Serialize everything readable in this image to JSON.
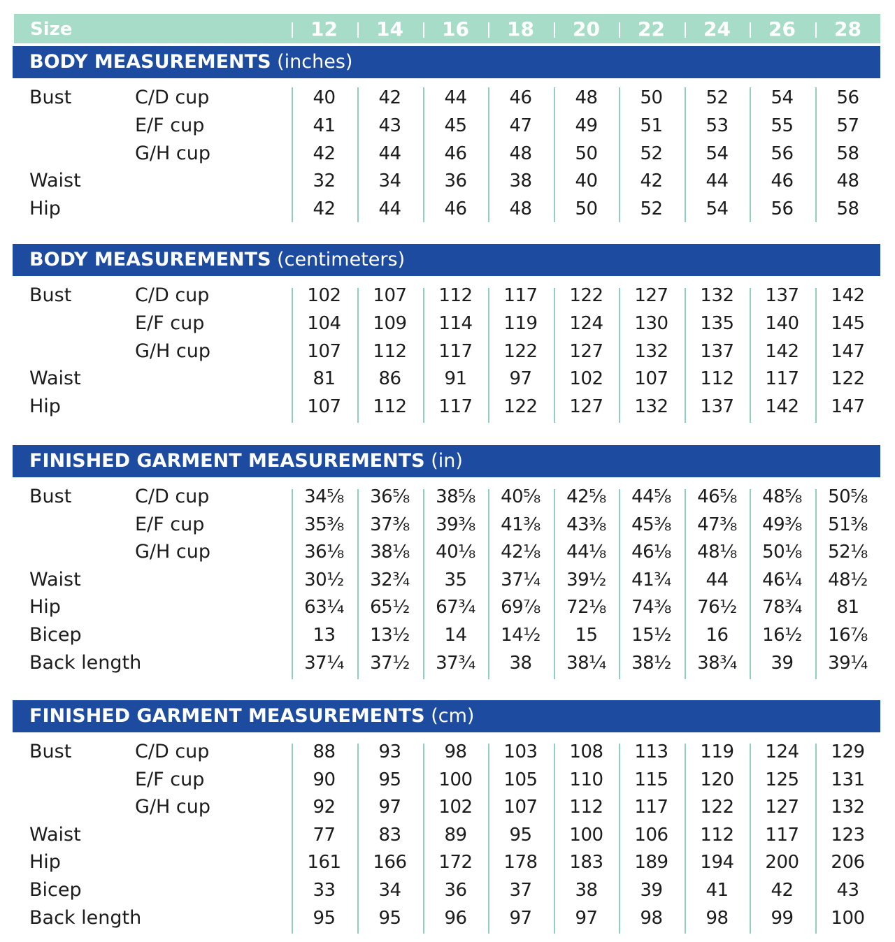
{
  "header": {
    "size_label": "Size",
    "sizes": [
      "12",
      "14",
      "16",
      "18",
      "20",
      "22",
      "24",
      "26",
      "28"
    ]
  },
  "sections": [
    {
      "title_bold": "BODY MEASUREMENTS",
      "title_unit": "(inches)",
      "rows": [
        {
          "label": "Bust",
          "sub": "C/D cup",
          "values": [
            "40",
            "42",
            "44",
            "46",
            "48",
            "50",
            "52",
            "54",
            "56"
          ]
        },
        {
          "label": "",
          "sub": "E/F cup",
          "values": [
            "41",
            "43",
            "45",
            "47",
            "49",
            "51",
            "53",
            "55",
            "57"
          ]
        },
        {
          "label": "",
          "sub": "G/H cup",
          "values": [
            "42",
            "44",
            "46",
            "48",
            "50",
            "52",
            "54",
            "56",
            "58"
          ]
        },
        {
          "label": "Waist",
          "sub": "",
          "values": [
            "32",
            "34",
            "36",
            "38",
            "40",
            "42",
            "44",
            "46",
            "48"
          ]
        },
        {
          "label": "Hip",
          "sub": "",
          "values": [
            "42",
            "44",
            "46",
            "48",
            "50",
            "52",
            "54",
            "56",
            "58"
          ]
        }
      ]
    },
    {
      "title_bold": "BODY MEASUREMENTS",
      "title_unit": "(centimeters)",
      "rows": [
        {
          "label": "Bust",
          "sub": "C/D cup",
          "values": [
            "102",
            "107",
            "112",
            "117",
            "122",
            "127",
            "132",
            "137",
            "142"
          ]
        },
        {
          "label": "",
          "sub": "E/F cup",
          "values": [
            "104",
            "109",
            "114",
            "119",
            "124",
            "130",
            "135",
            "140",
            "145"
          ]
        },
        {
          "label": "",
          "sub": "G/H cup",
          "values": [
            "107",
            "112",
            "117",
            "122",
            "127",
            "132",
            "137",
            "142",
            "147"
          ]
        },
        {
          "label": "Waist",
          "sub": "",
          "values": [
            "81",
            "86",
            "91",
            "97",
            "102",
            "107",
            "112",
            "117",
            "122"
          ]
        },
        {
          "label": "Hip",
          "sub": "",
          "values": [
            "107",
            "112",
            "117",
            "122",
            "127",
            "132",
            "137",
            "142",
            "147"
          ]
        }
      ]
    },
    {
      "title_bold": "FINISHED GARMENT MEASUREMENTS",
      "title_unit": "(in)",
      "rows": [
        {
          "label": "Bust",
          "sub": "C/D cup",
          "values": [
            "34⅝",
            "36⅝",
            "38⅝",
            "40⅝",
            "42⅝",
            "44⅝",
            "46⅝",
            "48⅝",
            "50⅝"
          ]
        },
        {
          "label": "",
          "sub": "E/F cup",
          "values": [
            "35⅜",
            "37⅜",
            "39⅜",
            "41⅜",
            "43⅜",
            "45⅜",
            "47⅜",
            "49⅜",
            "51⅜"
          ]
        },
        {
          "label": "",
          "sub": "G/H cup",
          "values": [
            "36⅛",
            "38⅛",
            "40⅛",
            "42⅛",
            "44⅛",
            "46⅛",
            "48⅛",
            "50⅛",
            "52⅛"
          ]
        },
        {
          "label": "Waist",
          "sub": "",
          "values": [
            "30½",
            "32¾",
            "35",
            "37¼",
            "39½",
            "41¾",
            "44",
            "46¼",
            "48½"
          ]
        },
        {
          "label": "Hip",
          "sub": "",
          "values": [
            "63¼",
            "65½",
            "67¾",
            "69⅞",
            "72⅛",
            "74⅜",
            "76½",
            "78¾",
            "81"
          ]
        },
        {
          "label": "Bicep",
          "sub": "",
          "values": [
            "13",
            "13½",
            "14",
            "14½",
            "15",
            "15½",
            "16",
            "16½",
            "16⅞"
          ]
        },
        {
          "label": "Back length",
          "sub": "",
          "values": [
            "37¼",
            "37½",
            "37¾",
            "38",
            "38¼",
            "38½",
            "38¾",
            "39",
            "39¼"
          ]
        }
      ]
    },
    {
      "title_bold": "FINISHED GARMENT MEASUREMENTS",
      "title_unit": "(cm)",
      "rows": [
        {
          "label": "Bust",
          "sub": "C/D cup",
          "values": [
            "88",
            "93",
            "98",
            "103",
            "108",
            "113",
            "119",
            "124",
            "129"
          ]
        },
        {
          "label": "",
          "sub": "E/F cup",
          "values": [
            "90",
            "95",
            "100",
            "105",
            "110",
            "115",
            "120",
            "125",
            "131"
          ]
        },
        {
          "label": "",
          "sub": "G/H cup",
          "values": [
            "92",
            "97",
            "102",
            "107",
            "112",
            "117",
            "122",
            "127",
            "132"
          ]
        },
        {
          "label": "Waist",
          "sub": "",
          "values": [
            "77",
            "83",
            "89",
            "95",
            "100",
            "106",
            "112",
            "117",
            "123"
          ]
        },
        {
          "label": "Hip",
          "sub": "",
          "values": [
            "161",
            "166",
            "172",
            "178",
            "183",
            "189",
            "194",
            "200",
            "206"
          ]
        },
        {
          "label": "Bicep",
          "sub": "",
          "values": [
            "33",
            "34",
            "36",
            "37",
            "38",
            "39",
            "41",
            "42",
            "43"
          ]
        },
        {
          "label": "Back length",
          "sub": "",
          "values": [
            "95",
            "95",
            "96",
            "97",
            "97",
            "98",
            "98",
            "99",
            "100"
          ]
        }
      ]
    }
  ],
  "colors": {
    "header_bar": "#a6dcc8",
    "section_band": "#1c4b9f",
    "column_line": "#8fd0bb"
  }
}
